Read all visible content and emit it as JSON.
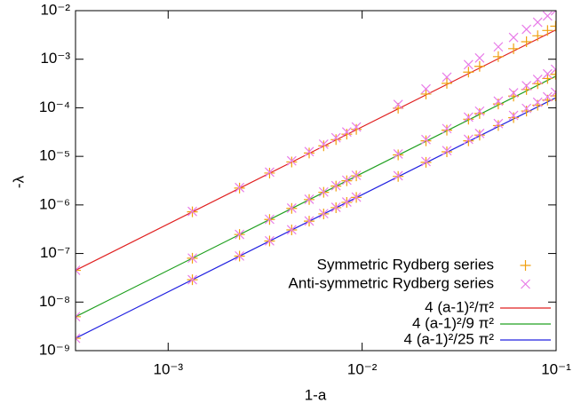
{
  "chart_data": {
    "type": "scatter",
    "xlabel": "1-a",
    "ylabel": "-λ",
    "xlog": true,
    "ylog": true,
    "xlim": [
      0.000333,
      0.1
    ],
    "ylim": [
      1e-09,
      0.01
    ],
    "xticks": [
      {
        "value": 0.001,
        "label": "10⁻³"
      },
      {
        "value": 0.01,
        "label": "10⁻²"
      },
      {
        "value": 0.1,
        "label": "10⁻¹"
      }
    ],
    "yticks": [
      {
        "value": 1e-09,
        "label": "10⁻⁹"
      },
      {
        "value": 1e-08,
        "label": "10⁻⁸"
      },
      {
        "value": 1e-07,
        "label": "10⁻⁷"
      },
      {
        "value": 1e-06,
        "label": "10⁻⁶"
      },
      {
        "value": 1e-05,
        "label": "10⁻⁵"
      },
      {
        "value": 0.0001,
        "label": "10⁻⁴"
      },
      {
        "value": 0.001,
        "label": "10⁻³"
      },
      {
        "value": 0.01,
        "label": "10⁻²"
      }
    ],
    "legend": "bottom-right",
    "x": [
      0.000333,
      0.001333,
      0.002333,
      0.003333,
      0.004333,
      0.005333,
      0.006333,
      0.007333,
      0.008333,
      0.009333,
      0.015333,
      0.021333,
      0.027333,
      0.035333,
      0.040333,
      0.050333,
      0.060333,
      0.070333,
      0.080333,
      0.090333,
      0.099333
    ],
    "series": [
      {
        "name": "Symmetric Rydberg series",
        "color": "#f0a010",
        "marker": "plus",
        "values": [
          [
            4.5e-08,
            7.22e-07,
            2.22e-06,
            4.53e-06,
            7.67e-06,
            1.17e-05,
            1.65e-05,
            2.21e-05,
            2.86e-05,
            3.6e-05,
            9.82e-05,
            0.000192,
            0.000319,
            0.000542,
            0.000713,
            0.00113,
            0.00165,
            0.00229,
            0.00304,
            0.00391,
            0.00479
          ],
          [
            4.99e-09,
            8.01e-08,
            2.46e-07,
            5.02e-07,
            8.49e-07,
            1.29e-06,
            1.82e-06,
            2.44e-06,
            3.15e-06,
            3.96e-06,
            1.07e-05,
            2.09e-05,
            3.46e-05,
            5.82e-05,
            7.62e-05,
            0.00012,
            0.000174,
            0.000238,
            0.000314,
            0.000401,
            0.000488
          ],
          [
            1.8e-09,
            2.88e-08,
            8.84e-08,
            1.81e-07,
            3.06e-07,
            4.63e-07,
            6.54e-07,
            8.78e-07,
            1.13e-06,
            1.43e-06,
            3.87e-06,
            7.53e-06,
            1.24e-05,
            2.09e-05,
            2.74e-05,
            4.31e-05,
            6.26e-05,
            8.58e-05,
            0.000113,
            0.000144,
            0.000176
          ]
        ]
      },
      {
        "name": "Anti-symmetric Rydberg series",
        "color": "#e87ce8",
        "marker": "cross",
        "values": [
          [
            4.52e-08,
            7.35e-07,
            2.28e-06,
            4.73e-06,
            8.1e-06,
            1.25e-05,
            1.78e-05,
            2.42e-05,
            3.17e-05,
            4.02e-05,
            0.000117,
            0.000244,
            0.000427,
            0.000774,
            0.00106,
            0.0018,
            0.00281,
            0.00412,
            0.00577,
            0.00779,
            0.00996
          ],
          [
            5e-09,
            8.04e-08,
            2.47e-07,
            5.07e-07,
            8.6e-07,
            1.31e-06,
            1.85e-06,
            2.49e-06,
            3.23e-06,
            4.07e-06,
            1.12e-05,
            2.22e-05,
            3.73e-05,
            6.42e-05,
            8.51e-05,
            0.000137,
            0.000203,
            0.000285,
            0.000384,
            0.0005,
            0.000621
          ],
          [
            1.8e-09,
            2.89e-08,
            8.89e-08,
            1.82e-07,
            3.08e-07,
            4.68e-07,
            6.63e-07,
            8.91e-07,
            1.15e-06,
            1.45e-06,
            3.99e-06,
            7.85e-06,
            1.31e-05,
            2.24e-05,
            2.96e-05,
            4.73e-05,
            6.97e-05,
            9.71e-05,
            0.00013,
            0.000168,
            0.000208
          ]
        ]
      }
    ],
    "lines": [
      {
        "name": "4 (a-1)²/π²",
        "color": "#e02020",
        "x": [
          0.000333,
          0.1
        ],
        "values": [
          4.49e-08,
          0.00405
        ]
      },
      {
        "name": "4 (a-1)²/9 π²",
        "color": "#20a020",
        "x": [
          0.000333,
          0.1
        ],
        "values": [
          4.99e-09,
          0.00045
        ]
      },
      {
        "name": "4 (a-1)²/25 π²",
        "color": "#2020e0",
        "x": [
          0.000333,
          0.1
        ],
        "values": [
          1.8e-09,
          0.000162
        ]
      }
    ]
  }
}
